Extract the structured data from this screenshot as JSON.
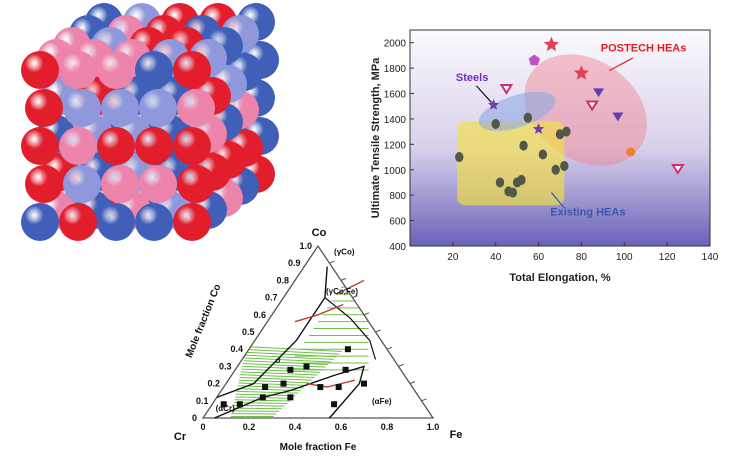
{
  "chart_data": [
    {
      "type": "scatter",
      "title": "",
      "xlabel": "Total Elongation, %",
      "ylabel": "Ultimate Tensile Strength, MPa",
      "xlim": [
        0,
        140
      ],
      "ylim": [
        400,
        2100
      ],
      "xticks": [
        "20",
        "40",
        "60",
        "80",
        "100",
        "120",
        "140"
      ],
      "yticks": [
        "400",
        "600",
        "800",
        "1000",
        "1200",
        "1400",
        "1600",
        "1800",
        "2000"
      ],
      "grid": false,
      "series": [
        {
          "name": "POSTECH HEAs",
          "color": "#e0405a",
          "points": [
            {
              "x": 66,
              "y": 1985,
              "marker": "star"
            },
            {
              "x": 80,
              "y": 1760,
              "marker": "star"
            },
            {
              "x": 58,
              "y": 1860,
              "marker": "pentagon"
            },
            {
              "x": 88,
              "y": 1610,
              "marker": "triangle-down"
            },
            {
              "x": 97,
              "y": 1420,
              "marker": "triangle-down"
            },
            {
              "x": 85,
              "y": 1510,
              "marker": "triangle-down-open"
            },
            {
              "x": 45,
              "y": 1640,
              "marker": "triangle-down-open"
            },
            {
              "x": 125,
              "y": 1010,
              "marker": "triangle-down-open"
            },
            {
              "x": 103,
              "y": 1140,
              "marker": "circle"
            }
          ]
        },
        {
          "name": "Steels",
          "color": "#7040b0",
          "points": [
            {
              "x": 39,
              "y": 1510,
              "marker": "star"
            },
            {
              "x": 60,
              "y": 1320,
              "marker": "star"
            }
          ]
        },
        {
          "name": "Existing HEAs",
          "color": "#505848",
          "points": [
            {
              "x": 23,
              "y": 1100
            },
            {
              "x": 40,
              "y": 1360
            },
            {
              "x": 42,
              "y": 900
            },
            {
              "x": 46,
              "y": 830
            },
            {
              "x": 48,
              "y": 820
            },
            {
              "x": 50,
              "y": 900
            },
            {
              "x": 52,
              "y": 920
            },
            {
              "x": 53,
              "y": 1190
            },
            {
              "x": 55,
              "y": 1410
            },
            {
              "x": 62,
              "y": 1120
            },
            {
              "x": 68,
              "y": 1000
            },
            {
              "x": 70,
              "y": 1280
            },
            {
              "x": 72,
              "y": 1030
            },
            {
              "x": 73,
              "y": 1300
            }
          ]
        }
      ],
      "annotations": [
        "POSTECH HEAs",
        "Steels",
        "Existing HEAs"
      ]
    },
    {
      "type": "ternary",
      "title": "",
      "xlabel": "Mole fraction Fe",
      "ylabel": "Mole fraction Co",
      "corner_labels": {
        "top": "Co",
        "left": "Cr",
        "right": "Fe"
      },
      "axis_ticks": [
        "0",
        "0.1",
        "0.2",
        "0.3",
        "0.4",
        "0.5",
        "0.6",
        "0.7",
        "0.8",
        "0.9",
        "1.0"
      ],
      "bottom_ticks": [
        "0",
        "0.2",
        "0.4",
        "0.6",
        "0.8",
        "1.0"
      ],
      "phase_labels": [
        "(γCo)",
        "(γCo,Fe)",
        "σ",
        "(αCr)",
        "(αFe)"
      ],
      "composition_points": [
        {
          "fe": 0.05,
          "co": 0.08
        },
        {
          "fe": 0.12,
          "co": 0.08
        },
        {
          "fe": 0.2,
          "co": 0.12
        },
        {
          "fe": 0.18,
          "co": 0.18
        },
        {
          "fe": 0.25,
          "co": 0.2
        },
        {
          "fe": 0.32,
          "co": 0.12
        },
        {
          "fe": 0.24,
          "co": 0.28
        },
        {
          "fe": 0.3,
          "co": 0.3
        },
        {
          "fe": 0.42,
          "co": 0.18
        },
        {
          "fe": 0.43,
          "co": 0.4
        },
        {
          "fe": 0.48,
          "co": 0.28
        },
        {
          "fe": 0.53,
          "co": 0.08
        },
        {
          "fe": 0.5,
          "co": 0.18
        },
        {
          "fe": 0.6,
          "co": 0.2
        }
      ]
    }
  ],
  "illustration": {
    "name": "random solid solution atom model",
    "atom_colors": [
      "#e21d2c",
      "#3f5fb8",
      "#8f98da",
      "#ec84ac"
    ]
  }
}
